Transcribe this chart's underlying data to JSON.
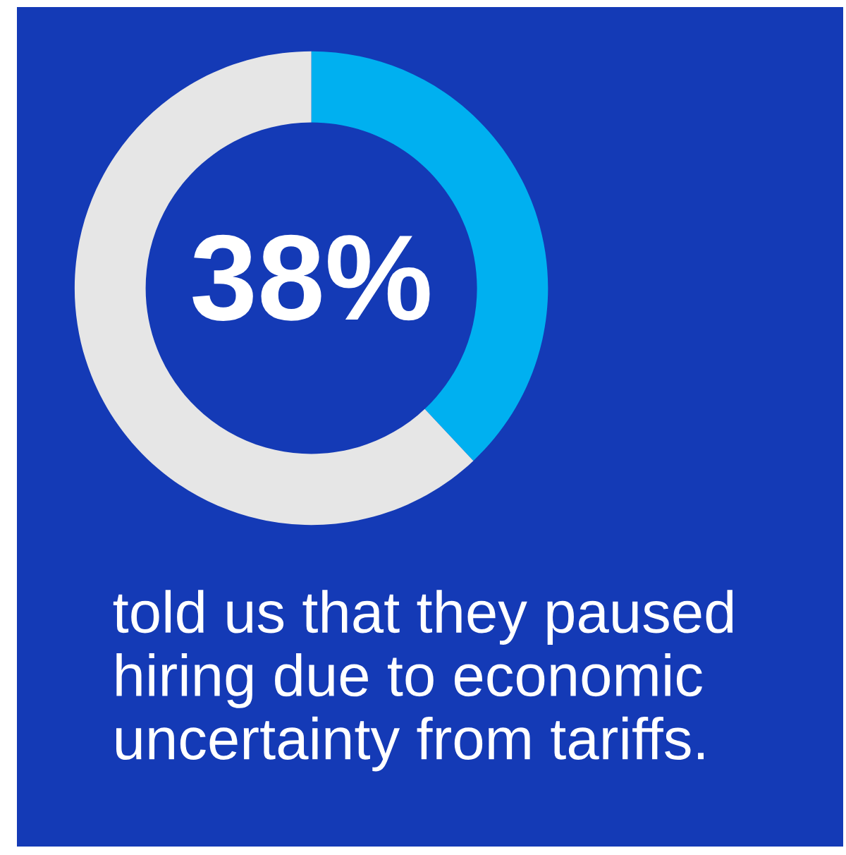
{
  "chart_data": {
    "type": "donut",
    "categories": [
      null,
      null
    ],
    "values": [
      38,
      62
    ],
    "colors": [
      "#00b0f0",
      "#e6e6e6"
    ],
    "value_labels": [
      "38%",
      null
    ],
    "annotations": [
      "told us that they paused hiring due to economic uncertainty from tariffs."
    ]
  }
}
